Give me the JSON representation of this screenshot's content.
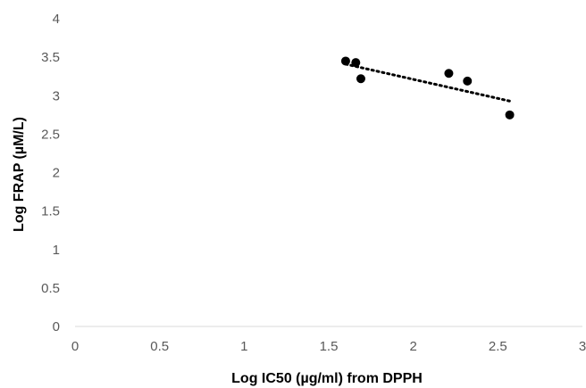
{
  "chart_data": {
    "type": "scatter",
    "title": "",
    "xlabel": "Log IC50 (µg/ml) from DPPH",
    "ylabel": "Log FRAP (µM/L)",
    "xlim": [
      0,
      3
    ],
    "ylim": [
      0,
      4
    ],
    "x_ticks": [
      "0",
      "0.5",
      "1",
      "1.5",
      "2",
      "2.5",
      "3"
    ],
    "y_ticks": [
      "0",
      "0.5",
      "1",
      "1.5",
      "2",
      "2.5",
      "3",
      "3.5",
      "4"
    ],
    "grid": false,
    "legend": "none",
    "series": [
      {
        "points": [
          {
            "x": 1.6,
            "y": 3.45
          },
          {
            "x": 1.66,
            "y": 3.43
          },
          {
            "x": 1.69,
            "y": 3.22
          },
          {
            "x": 2.21,
            "y": 3.29
          },
          {
            "x": 2.32,
            "y": 3.19
          },
          {
            "x": 2.57,
            "y": 2.75
          }
        ],
        "color": "#000000"
      }
    ],
    "trendline": {
      "style": "dotted",
      "color": "#000000",
      "from": {
        "x": 1.6,
        "y": 3.41
      },
      "to": {
        "x": 2.57,
        "y": 2.93
      }
    }
  }
}
